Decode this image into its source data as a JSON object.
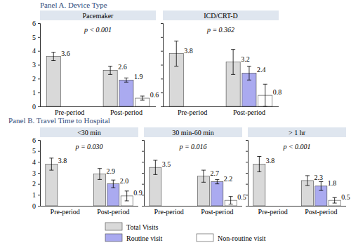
{
  "panel_titles": [
    "Panel A. Device Type",
    "Panel B. Travel Time to Hospital"
  ],
  "chart_data": [
    {
      "type": "bar",
      "title": "Pacemaker",
      "subtitle": "p < 0.001",
      "categories": [
        "Pre-period",
        "Post-period"
      ],
      "series": [
        {
          "name": "Total Visits",
          "color": "#d9d9d9",
          "values": [
            3.6,
            2.6
          ],
          "value_labels": [
            "3.6",
            "2.6"
          ],
          "errors": [
            0.3,
            0.3
          ]
        },
        {
          "name": "Routine visit",
          "color": "#aaaaf0",
          "values": [
            null,
            1.9
          ],
          "value_labels": [
            null,
            "1.9"
          ],
          "errors": [
            null,
            0.15
          ]
        },
        {
          "name": "Non-routine visit",
          "color": "#ffffff",
          "values": [
            null,
            0.6
          ],
          "value_labels": [
            null,
            "0.6"
          ],
          "errors": [
            null,
            0.15
          ]
        }
      ],
      "ylim": [
        0,
        6
      ],
      "yticks": [
        0,
        1,
        2,
        3,
        4,
        5,
        6
      ],
      "data_labels": true,
      "legend": "bottom"
    },
    {
      "type": "bar",
      "title": "ICD/CRT-D",
      "subtitle": "p = 0.362",
      "categories": [
        "Pre-period",
        "Post-period"
      ],
      "series": [
        {
          "name": "Total Visits",
          "color": "#d9d9d9",
          "values": [
            3.8,
            3.2
          ],
          "value_labels": [
            "3.8",
            "3.2"
          ],
          "errors": [
            0.9,
            0.9
          ]
        },
        {
          "name": "Routine visit",
          "color": "#aaaaf0",
          "values": [
            null,
            2.4
          ],
          "value_labels": [
            null,
            "2.4"
          ],
          "errors": [
            null,
            0.5
          ]
        },
        {
          "name": "Non-routine visit",
          "color": "#ffffff",
          "values": [
            null,
            0.8
          ],
          "value_labels": [
            null,
            "0.8"
          ],
          "errors": [
            null,
            0.8
          ]
        }
      ],
      "ylim": [
        0,
        6
      ],
      "yticks": [
        0,
        1,
        2,
        3,
        4,
        5,
        6
      ],
      "data_labels": true,
      "tick_labels": "x"
    },
    {
      "type": "bar",
      "title": "<30 min",
      "subtitle": "p = 0.030",
      "categories": [
        "Pre-period",
        "Post-period"
      ],
      "series": [
        {
          "name": "Total Visits",
          "color": "#d9d9d9",
          "values": [
            3.8,
            2.9
          ],
          "value_labels": [
            "3.8",
            "2.9"
          ],
          "errors": [
            0.55,
            0.5
          ]
        },
        {
          "name": "Routine visit",
          "color": "#aaaaf0",
          "values": [
            null,
            2.0
          ],
          "value_labels": [
            null,
            "2.0"
          ],
          "errors": [
            null,
            0.35
          ]
        },
        {
          "name": "Non-routine visit",
          "color": "#ffffff",
          "values": [
            null,
            0.9
          ],
          "value_labels": [
            null,
            "0.9"
          ],
          "errors": [
            null,
            0.45
          ]
        }
      ],
      "ylim": [
        0,
        6
      ],
      "yticks": [
        0,
        1,
        2,
        3,
        4,
        5,
        6
      ],
      "data_labels": true
    },
    {
      "type": "bar",
      "title": "30 min-60 min",
      "subtitle": "p = 0.016",
      "categories": [
        "Pre-period",
        "Post-period"
      ],
      "series": [
        {
          "name": "Total Visits",
          "color": "#d9d9d9",
          "values": [
            3.5,
            2.7
          ],
          "value_labels": [
            "3.5",
            "2.7"
          ],
          "errors": [
            0.65,
            0.55
          ]
        },
        {
          "name": "Routine visit",
          "color": "#aaaaf0",
          "values": [
            null,
            2.2
          ],
          "value_labels": [
            null,
            "2.2"
          ],
          "errors": [
            null,
            0.2
          ]
        },
        {
          "name": "Non-routine visit",
          "color": "#ffffff",
          "values": [
            null,
            0.5
          ],
          "value_labels": [
            null,
            "0.5"
          ],
          "errors": [
            null,
            0.35
          ]
        }
      ],
      "ylim": [
        0,
        6
      ],
      "yticks": [
        0,
        1,
        2,
        3,
        4,
        5,
        6
      ],
      "data_labels": true,
      "tick_labels": "x"
    },
    {
      "type": "bar",
      "title": "> 1 hr",
      "subtitle": "p < 0.001",
      "categories": [
        "Pre-period",
        "Post-period"
      ],
      "series": [
        {
          "name": "Total Visits",
          "color": "#d9d9d9",
          "values": [
            3.8,
            2.3
          ],
          "value_labels": [
            "3.8",
            "2.3"
          ],
          "errors": [
            0.7,
            0.45
          ]
        },
        {
          "name": "Routine visit",
          "color": "#aaaaf0",
          "values": [
            null,
            1.8
          ],
          "value_labels": [
            null,
            "1.8"
          ],
          "errors": [
            null,
            0.4
          ]
        },
        {
          "name": "Non-routine visit",
          "color": "#ffffff",
          "values": [
            null,
            0.5
          ],
          "value_labels": [
            null,
            "0.5"
          ],
          "errors": [
            null,
            0.25
          ]
        }
      ],
      "ylim": [
        0,
        6
      ],
      "yticks": [
        0,
        1,
        2,
        3,
        4,
        5,
        6
      ],
      "data_labels": true,
      "tick_labels": "x"
    }
  ]
}
